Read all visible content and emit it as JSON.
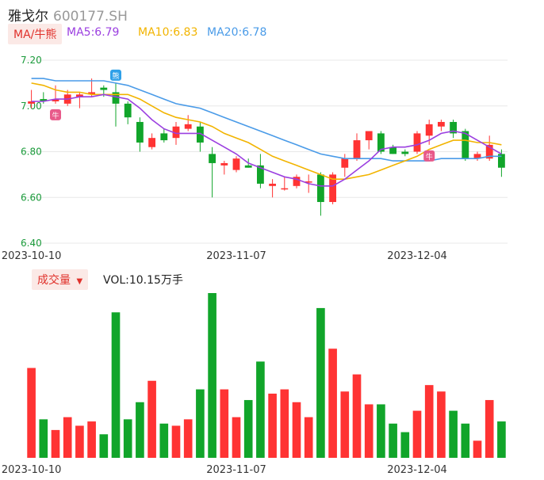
{
  "header": {
    "name": "雅戈尔",
    "code": "600177.SH"
  },
  "ma_legend": {
    "indicator_label": "MA/牛熊",
    "ma5": "MA5:6.79",
    "ma10": "MA10:6.83",
    "ma20": "MA20:6.78",
    "colors": {
      "ma5": "#9b3fe0",
      "ma10": "#f2b400",
      "ma20": "#4a9be8",
      "up": "#ff3333",
      "down": "#11a52a",
      "bull_badge": "#e85a8a",
      "bear_badge": "#2fa0e8"
    }
  },
  "volume_legend": {
    "label": "成交量",
    "value": "VOL:10.15万手"
  },
  "chart_data": {
    "type": "candlestick",
    "y_ticks": [
      "7.20",
      "7.00",
      "6.80",
      "6.60",
      "6.40"
    ],
    "ylim": [
      6.4,
      7.2
    ],
    "date_labels": [
      {
        "index": 0,
        "text": "2023-10-10"
      },
      {
        "index": 17,
        "text": "2023-11-07"
      },
      {
        "index": 32,
        "text": "2023-12-04"
      }
    ],
    "candles": [
      {
        "o": 7.01,
        "h": 7.07,
        "l": 6.99,
        "c": 7.02
      },
      {
        "o": 7.03,
        "h": 7.06,
        "l": 7.01,
        "c": 7.02
      },
      {
        "o": 7.02,
        "h": 7.09,
        "l": 7.01,
        "c": 7.03
      },
      {
        "o": 7.01,
        "h": 7.07,
        "l": 7.0,
        "c": 7.05
      },
      {
        "o": 7.04,
        "h": 7.06,
        "l": 6.99,
        "c": 7.05
      },
      {
        "o": 7.05,
        "h": 7.12,
        "l": 7.04,
        "c": 7.06
      },
      {
        "o": 7.08,
        "h": 7.09,
        "l": 7.04,
        "c": 7.07
      },
      {
        "o": 7.06,
        "h": 7.1,
        "l": 6.91,
        "c": 7.01
      },
      {
        "o": 7.01,
        "h": 7.02,
        "l": 6.92,
        "c": 6.95
      },
      {
        "o": 6.93,
        "h": 6.95,
        "l": 6.8,
        "c": 6.84
      },
      {
        "o": 6.82,
        "h": 6.88,
        "l": 6.81,
        "c": 6.86
      },
      {
        "o": 6.88,
        "h": 6.9,
        "l": 6.84,
        "c": 6.85
      },
      {
        "o": 6.86,
        "h": 6.93,
        "l": 6.83,
        "c": 6.91
      },
      {
        "o": 6.9,
        "h": 6.96,
        "l": 6.89,
        "c": 6.92
      },
      {
        "o": 6.91,
        "h": 6.93,
        "l": 6.8,
        "c": 6.84
      },
      {
        "o": 6.79,
        "h": 6.82,
        "l": 6.6,
        "c": 6.75
      },
      {
        "o": 6.74,
        "h": 6.76,
        "l": 6.7,
        "c": 6.75
      },
      {
        "o": 6.72,
        "h": 6.78,
        "l": 6.71,
        "c": 6.77
      },
      {
        "o": 6.74,
        "h": 6.77,
        "l": 6.73,
        "c": 6.73
      },
      {
        "o": 6.74,
        "h": 6.79,
        "l": 6.64,
        "c": 6.66
      },
      {
        "o": 6.65,
        "h": 6.68,
        "l": 6.6,
        "c": 6.66
      },
      {
        "o": 6.64,
        "h": 6.69,
        "l": 6.63,
        "c": 6.64
      },
      {
        "o": 6.65,
        "h": 6.7,
        "l": 6.64,
        "c": 6.69
      },
      {
        "o": 6.67,
        "h": 6.7,
        "l": 6.62,
        "c": 6.67
      },
      {
        "o": 6.7,
        "h": 6.71,
        "l": 6.52,
        "c": 6.58
      },
      {
        "o": 6.58,
        "h": 6.71,
        "l": 6.57,
        "c": 6.7
      },
      {
        "o": 6.73,
        "h": 6.79,
        "l": 6.69,
        "c": 6.77
      },
      {
        "o": 6.77,
        "h": 6.88,
        "l": 6.76,
        "c": 6.85
      },
      {
        "o": 6.85,
        "h": 6.89,
        "l": 6.81,
        "c": 6.89
      },
      {
        "o": 6.88,
        "h": 6.89,
        "l": 6.79,
        "c": 6.8
      },
      {
        "o": 6.82,
        "h": 6.83,
        "l": 6.79,
        "c": 6.79
      },
      {
        "o": 6.8,
        "h": 6.81,
        "l": 6.78,
        "c": 6.79
      },
      {
        "o": 6.8,
        "h": 6.89,
        "l": 6.79,
        "c": 6.88
      },
      {
        "o": 6.87,
        "h": 6.94,
        "l": 6.83,
        "c": 6.92
      },
      {
        "o": 6.91,
        "h": 6.94,
        "l": 6.89,
        "c": 6.93
      },
      {
        "o": 6.93,
        "h": 6.94,
        "l": 6.86,
        "c": 6.88
      },
      {
        "o": 6.89,
        "h": 6.9,
        "l": 6.76,
        "c": 6.77
      },
      {
        "o": 6.77,
        "h": 6.8,
        "l": 6.76,
        "c": 6.79
      },
      {
        "o": 6.77,
        "h": 6.87,
        "l": 6.76,
        "c": 6.83
      },
      {
        "o": 6.79,
        "h": 6.81,
        "l": 6.69,
        "c": 6.73
      }
    ],
    "ma5": [
      7.02,
      7.02,
      7.03,
      7.03,
      7.04,
      7.04,
      7.05,
      7.04,
      7.03,
      6.99,
      6.94,
      6.9,
      6.88,
      6.88,
      6.88,
      6.85,
      6.82,
      6.79,
      6.75,
      6.73,
      6.71,
      6.69,
      6.68,
      6.66,
      6.65,
      6.65,
      6.68,
      6.72,
      6.76,
      6.81,
      6.82,
      6.82,
      6.83,
      6.85,
      6.88,
      6.89,
      6.88,
      6.85,
      6.82,
      6.79
    ],
    "ma10": [
      7.1,
      7.09,
      7.07,
      7.06,
      7.06,
      7.05,
      7.05,
      7.05,
      7.05,
      7.03,
      7.0,
      6.97,
      6.95,
      6.94,
      6.93,
      6.91,
      6.88,
      6.86,
      6.84,
      6.81,
      6.78,
      6.76,
      6.74,
      6.72,
      6.7,
      6.68,
      6.68,
      6.69,
      6.7,
      6.72,
      6.74,
      6.76,
      6.78,
      6.81,
      6.83,
      6.85,
      6.85,
      6.84,
      6.84,
      6.83
    ],
    "ma20": [
      7.12,
      7.12,
      7.11,
      7.11,
      7.11,
      7.11,
      7.11,
      7.1,
      7.09,
      7.07,
      7.05,
      7.03,
      7.01,
      7.0,
      6.99,
      6.97,
      6.95,
      6.93,
      6.91,
      6.89,
      6.87,
      6.85,
      6.83,
      6.81,
      6.79,
      6.78,
      6.77,
      6.77,
      6.77,
      6.77,
      6.76,
      6.76,
      6.76,
      6.76,
      6.77,
      6.77,
      6.77,
      6.77,
      6.78,
      6.78
    ],
    "volume": [
      42,
      18,
      13,
      19,
      15,
      17,
      11,
      68,
      18,
      26,
      36,
      16,
      15,
      18,
      32,
      77,
      32,
      19,
      27,
      45,
      30,
      32,
      26,
      19,
      70,
      51,
      31,
      39,
      25,
      25,
      16,
      12,
      22,
      34,
      31,
      22,
      16,
      8,
      27,
      17
    ],
    "signals": [
      {
        "index": 2,
        "label": "牛",
        "type": "bull"
      },
      {
        "index": 7,
        "label": "熊",
        "type": "bear"
      },
      {
        "index": 33,
        "label": "牛",
        "type": "bull"
      }
    ]
  }
}
